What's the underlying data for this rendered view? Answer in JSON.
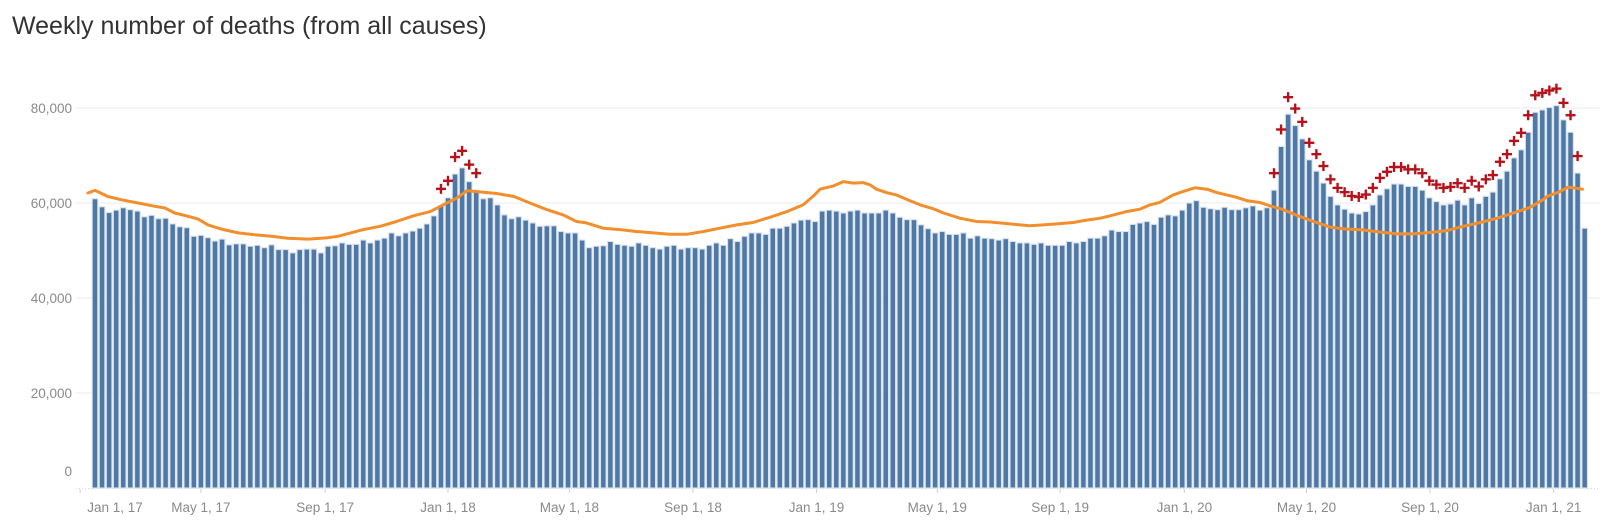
{
  "chart_data": {
    "type": "bar",
    "title": "Weekly number of deaths (from all causes)",
    "xlabel": "",
    "ylabel": "",
    "ylim": [
      0,
      80000
    ],
    "grid": true,
    "y_ticks": [
      {
        "value": 0,
        "label": "0"
      },
      {
        "value": 20000,
        "label": "20,000"
      },
      {
        "value": 40000,
        "label": "40,000"
      },
      {
        "value": 60000,
        "label": "60,000"
      },
      {
        "value": 80000,
        "label": "80,000"
      }
    ],
    "x_ticks": [
      {
        "week": -2.1,
        "label": "Jan 1, 17"
      },
      {
        "week": 15.0,
        "label": "May 1, 17"
      },
      {
        "week": 32.6,
        "label": "Sep 1, 17"
      },
      {
        "week": 50.0,
        "label": "Jan 1, 18"
      },
      {
        "week": 67.2,
        "label": "May 1, 18"
      },
      {
        "week": 84.7,
        "label": "Sep 1, 18"
      },
      {
        "week": 102.2,
        "label": "Jan 1, 19"
      },
      {
        "week": 119.3,
        "label": "May 1, 19"
      },
      {
        "week": 136.7,
        "label": "Sep 1, 19"
      },
      {
        "week": 154.3,
        "label": "Jan 1, 20"
      },
      {
        "week": 171.6,
        "label": "May 1, 20"
      },
      {
        "week": 189.1,
        "label": "Sep 1, 20"
      },
      {
        "week": 206.6,
        "label": "Jan 1, 21"
      }
    ],
    "weekly_deaths": [
      60900,
      59200,
      58000,
      58500,
      59000,
      58600,
      58300,
      57100,
      57400,
      56700,
      56800,
      55600,
      55000,
      54800,
      53000,
      53200,
      52700,
      52000,
      52400,
      51200,
      51400,
      51400,
      50900,
      51100,
      50600,
      51200,
      50200,
      50200,
      49500,
      50200,
      50300,
      50300,
      49500,
      50900,
      51000,
      51600,
      51300,
      51300,
      52200,
      51600,
      52200,
      52600,
      53700,
      53100,
      53700,
      54100,
      54700,
      55600,
      57300,
      59400,
      61100,
      66100,
      67400,
      64500,
      62700,
      60900,
      61100,
      59600,
      57500,
      56700,
      57100,
      56400,
      55800,
      55100,
      55200,
      55200,
      54000,
      53700,
      53700,
      52200,
      50600,
      50900,
      51000,
      51900,
      51300,
      51100,
      50900,
      51600,
      51100,
      50600,
      50300,
      50900,
      51100,
      50300,
      50600,
      50600,
      50300,
      51100,
      51600,
      51100,
      52500,
      51900,
      53000,
      53700,
      53700,
      53400,
      54700,
      54700,
      55100,
      55800,
      56400,
      56500,
      56100,
      58300,
      58500,
      58300,
      57900,
      58300,
      58500,
      57900,
      57900,
      57900,
      58500,
      57900,
      57000,
      56500,
      56500,
      55400,
      54600,
      53700,
      54000,
      53400,
      53400,
      53700,
      52600,
      53100,
      52600,
      52500,
      52200,
      52500,
      51900,
      51600,
      51600,
      51300,
      51600,
      51100,
      51100,
      51100,
      51900,
      51600,
      51900,
      52600,
      52600,
      53100,
      54300,
      54000,
      54000,
      55500,
      55800,
      56100,
      55500,
      57000,
      57500,
      57300,
      58500,
      60000,
      60500,
      59100,
      58800,
      58600,
      59100,
      58600,
      58600,
      59000,
      59400,
      58500,
      59000,
      62700,
      71900,
      78700,
      76300,
      73500,
      69100,
      66700,
      64200,
      61400,
      59600,
      58700,
      57900,
      57700,
      58200,
      59600,
      61700,
      63000,
      64000,
      64000,
      63500,
      63500,
      62700,
      61100,
      60300,
      59600,
      59800,
      60600,
      59600,
      61100,
      59900,
      61400,
      62300,
      65100,
      66700,
      69500,
      71200,
      74900,
      79100,
      79600,
      80100,
      80500,
      77500,
      74900,
      66300,
      54700
    ],
    "excess_flag_weeks": [
      49,
      50,
      51,
      52,
      53,
      54,
      167,
      168,
      169,
      170,
      171,
      172,
      173,
      174,
      175,
      176,
      177,
      178,
      179,
      180,
      181,
      182,
      183,
      184,
      185,
      186,
      187,
      188,
      189,
      190,
      191,
      192,
      193,
      194,
      195,
      196,
      197,
      198,
      199,
      200,
      201,
      202,
      203,
      204,
      205,
      206,
      207,
      208,
      209,
      210
    ],
    "expected_line": [
      [
        -1,
        62100
      ],
      [
        0,
        62650
      ],
      [
        1.8,
        61400
      ],
      [
        3.7,
        60700
      ],
      [
        6.1,
        60000
      ],
      [
        8.5,
        59300
      ],
      [
        9.9,
        58950
      ],
      [
        11.3,
        57900
      ],
      [
        13.2,
        57200
      ],
      [
        14.6,
        56600
      ],
      [
        16,
        55400
      ],
      [
        17.9,
        54500
      ],
      [
        20.3,
        53700
      ],
      [
        22.6,
        53300
      ],
      [
        25,
        53000
      ],
      [
        27.3,
        52600
      ],
      [
        30.2,
        52400
      ],
      [
        33,
        52700
      ],
      [
        34.4,
        53000
      ],
      [
        38,
        54400
      ],
      [
        40.4,
        55100
      ],
      [
        42.7,
        56100
      ],
      [
        45.1,
        57300
      ],
      [
        47.5,
        58200
      ],
      [
        49.3,
        59600
      ],
      [
        51.2,
        61000
      ],
      [
        52.7,
        62600
      ],
      [
        54.1,
        62400
      ],
      [
        56.9,
        62000
      ],
      [
        59.3,
        61400
      ],
      [
        61.6,
        60000
      ],
      [
        64,
        58600
      ],
      [
        66.3,
        57500
      ],
      [
        68.2,
        56100
      ],
      [
        69.6,
        55800
      ],
      [
        72,
        54700
      ],
      [
        74.4,
        54400
      ],
      [
        76.7,
        54000
      ],
      [
        79.1,
        53700
      ],
      [
        81.4,
        53400
      ],
      [
        83.8,
        53400
      ],
      [
        86.2,
        54000
      ],
      [
        88.5,
        54700
      ],
      [
        90.9,
        55400
      ],
      [
        93.2,
        55900
      ],
      [
        95.6,
        57000
      ],
      [
        98,
        58200
      ],
      [
        100.3,
        59600
      ],
      [
        101.7,
        61400
      ],
      [
        102.7,
        62900
      ],
      [
        104.6,
        63600
      ],
      [
        106,
        64500
      ],
      [
        107.4,
        64200
      ],
      [
        108.8,
        64300
      ],
      [
        109.8,
        63800
      ],
      [
        110.7,
        62900
      ],
      [
        112.1,
        62200
      ],
      [
        113.5,
        61700
      ],
      [
        115.4,
        60500
      ],
      [
        116.9,
        59600
      ],
      [
        118.7,
        58800
      ],
      [
        120.2,
        57900
      ],
      [
        122.5,
        56800
      ],
      [
        124.9,
        56100
      ],
      [
        126.8,
        56000
      ],
      [
        129.6,
        55600
      ],
      [
        132.4,
        55200
      ],
      [
        134.3,
        55400
      ],
      [
        136.2,
        55600
      ],
      [
        138.6,
        55900
      ],
      [
        140,
        56300
      ],
      [
        142.4,
        56800
      ],
      [
        143.8,
        57300
      ],
      [
        146.1,
        58200
      ],
      [
        148,
        58700
      ],
      [
        149.4,
        59600
      ],
      [
        150.8,
        60100
      ],
      [
        152.7,
        61700
      ],
      [
        154.1,
        62400
      ],
      [
        155.8,
        63200
      ],
      [
        157.5,
        62900
      ],
      [
        158.9,
        62200
      ],
      [
        160.3,
        61700
      ],
      [
        161.7,
        61200
      ],
      [
        163.1,
        60500
      ],
      [
        165,
        60100
      ],
      [
        166.4,
        59400
      ],
      [
        168.3,
        58600
      ],
      [
        170.2,
        57400
      ],
      [
        172.6,
        56100
      ],
      [
        175,
        54900
      ],
      [
        177.3,
        54500
      ],
      [
        179.2,
        54400
      ],
      [
        182,
        53900
      ],
      [
        184.4,
        53500
      ],
      [
        186.7,
        53500
      ],
      [
        189.1,
        53800
      ],
      [
        191.5,
        54200
      ],
      [
        193.8,
        55100
      ],
      [
        196.2,
        55900
      ],
      [
        198.6,
        56800
      ],
      [
        200.9,
        57900
      ],
      [
        203.3,
        59100
      ],
      [
        205.1,
        60700
      ],
      [
        205.7,
        61400
      ],
      [
        207.5,
        62400
      ],
      [
        208.6,
        63300
      ],
      [
        209.9,
        63100
      ],
      [
        210.7,
        62900
      ]
    ]
  },
  "colors": {
    "bar": "#4e79a7",
    "bar_outline": "#d9e1ea",
    "expected_line": "#f28e2b",
    "excess_marker": "#b5121b",
    "grid": "#efefef",
    "axis_text": "#8a8a8a",
    "title": "#333333"
  }
}
